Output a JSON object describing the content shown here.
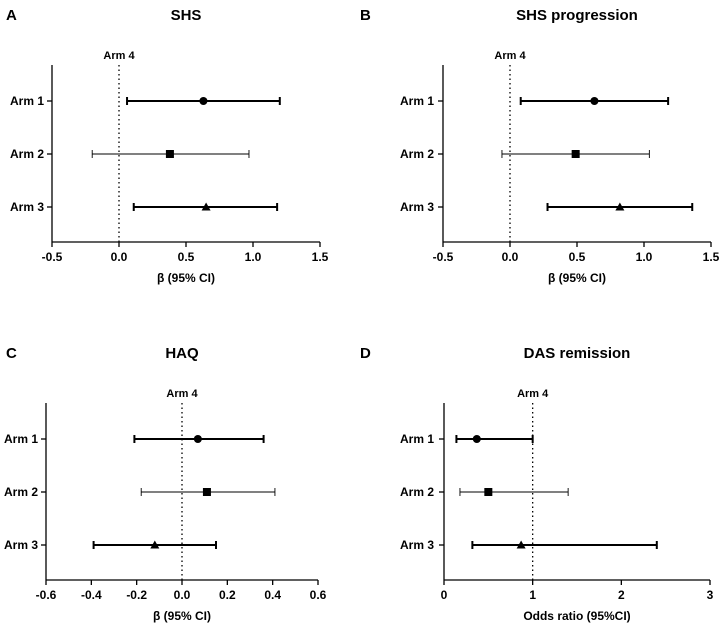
{
  "chart_data": [
    {
      "type": "forest",
      "panel": "A",
      "title": "SHS",
      "xlabel": "β (95% CI)",
      "reference_label": "Arm 4",
      "reference_value": 0,
      "xlim": [
        -0.5,
        1.5
      ],
      "xticks": [
        -0.5,
        0.0,
        0.5,
        1.0,
        1.5
      ],
      "xtick_labels": [
        "-0.5",
        "0.0",
        "0.5",
        "1.0",
        "1.5"
      ],
      "rows": [
        {
          "label": "Arm 1",
          "estimate": 0.63,
          "lower": 0.06,
          "upper": 1.2,
          "marker": "circle",
          "line": "thick"
        },
        {
          "label": "Arm 2",
          "estimate": 0.38,
          "lower": -0.2,
          "upper": 0.97,
          "marker": "square",
          "line": "thin"
        },
        {
          "label": "Arm 3",
          "estimate": 0.65,
          "lower": 0.11,
          "upper": 1.18,
          "marker": "triangle",
          "line": "thick"
        }
      ]
    },
    {
      "type": "forest",
      "panel": "B",
      "title": "SHS progression",
      "xlabel": "β (95% CI)",
      "reference_label": "Arm 4",
      "reference_value": 0,
      "xlim": [
        -0.5,
        1.5
      ],
      "xticks": [
        -0.5,
        0.0,
        0.5,
        1.0,
        1.5
      ],
      "xtick_labels": [
        "-0.5",
        "0.0",
        "0.5",
        "1.0",
        "1.5"
      ],
      "rows": [
        {
          "label": "Arm 1",
          "estimate": 0.63,
          "lower": 0.08,
          "upper": 1.18,
          "marker": "circle",
          "line": "thick"
        },
        {
          "label": "Arm 2",
          "estimate": 0.49,
          "lower": -0.06,
          "upper": 1.04,
          "marker": "square",
          "line": "thin"
        },
        {
          "label": "Arm 3",
          "estimate": 0.82,
          "lower": 0.28,
          "upper": 1.36,
          "marker": "triangle",
          "line": "thick"
        }
      ]
    },
    {
      "type": "forest",
      "panel": "C",
      "title": "HAQ",
      "xlabel": "β (95% CI)",
      "reference_label": "Arm 4",
      "reference_value": 0,
      "xlim": [
        -0.6,
        0.6
      ],
      "xticks": [
        -0.6,
        -0.4,
        -0.2,
        0.0,
        0.2,
        0.4,
        0.6
      ],
      "xtick_labels": [
        "-0.6",
        "-0.4",
        "-0.2",
        "0.0",
        "0.2",
        "0.4",
        "0.6"
      ],
      "rows": [
        {
          "label": "Arm 1",
          "estimate": 0.07,
          "lower": -0.21,
          "upper": 0.36,
          "marker": "circle",
          "line": "thick"
        },
        {
          "label": "Arm 2",
          "estimate": 0.11,
          "lower": -0.18,
          "upper": 0.41,
          "marker": "square",
          "line": "thin"
        },
        {
          "label": "Arm 3",
          "estimate": -0.12,
          "lower": -0.39,
          "upper": 0.15,
          "marker": "triangle",
          "line": "thick"
        }
      ]
    },
    {
      "type": "forest",
      "panel": "D",
      "title": "DAS remission",
      "xlabel": "Odds ratio (95%CI)",
      "reference_label": "Arm 4",
      "reference_value": 1,
      "xlim": [
        0,
        3
      ],
      "xticks": [
        0,
        1,
        2,
        3
      ],
      "xtick_labels": [
        "0",
        "1",
        "2",
        "3"
      ],
      "rows": [
        {
          "label": "Arm 1",
          "estimate": 0.37,
          "lower": 0.14,
          "upper": 1.0,
          "marker": "circle",
          "line": "thick"
        },
        {
          "label": "Arm 2",
          "estimate": 0.5,
          "lower": 0.18,
          "upper": 1.4,
          "marker": "square",
          "line": "thin"
        },
        {
          "label": "Arm 3",
          "estimate": 0.87,
          "lower": 0.32,
          "upper": 2.4,
          "marker": "triangle",
          "line": "thick"
        }
      ]
    }
  ]
}
